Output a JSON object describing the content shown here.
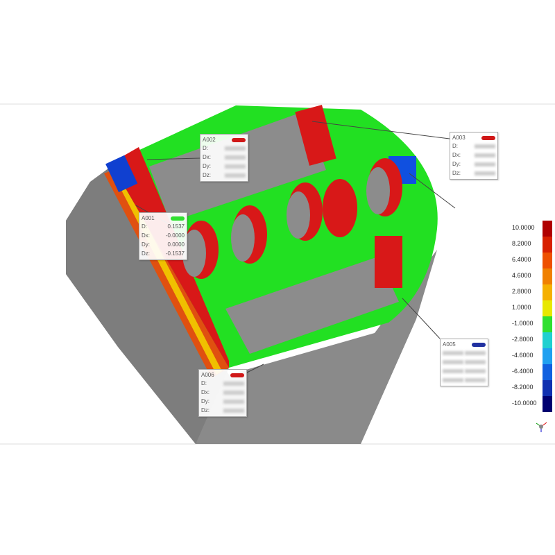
{
  "annotations": [
    {
      "id": "A001",
      "rows": [
        [
          "D:",
          "0.1537"
        ],
        [
          "Dx:",
          "-0.0000"
        ],
        [
          "Dy:",
          "0.0000"
        ],
        [
          "Dz:",
          "-0.1537"
        ]
      ]
    },
    {
      "id": "A002",
      "rows": [
        [
          "D:"
        ],
        [
          "Dx:"
        ],
        [
          "Dy:"
        ],
        [
          "Dz:"
        ]
      ]
    },
    {
      "id": "A003",
      "rows": [
        [
          "D:"
        ],
        [
          "Dx:"
        ],
        [
          "Dy:"
        ],
        [
          "Dz:"
        ]
      ]
    },
    {
      "id": "A005",
      "rows": [
        [],
        [],
        [],
        []
      ]
    },
    {
      "id": "A006",
      "rows": [
        [
          "D:"
        ],
        [
          "Dx:"
        ],
        [
          "Dy:"
        ],
        [
          "Dz:"
        ]
      ]
    }
  ],
  "color_scale": {
    "labels": [
      "10.0000",
      "8.2000",
      "6.4000",
      "4.6000",
      "2.8000",
      "1.0000",
      "-1.0000",
      "-2.8000",
      "-4.6000",
      "-6.4000",
      "-8.2000",
      "-10.0000"
    ]
  }
}
